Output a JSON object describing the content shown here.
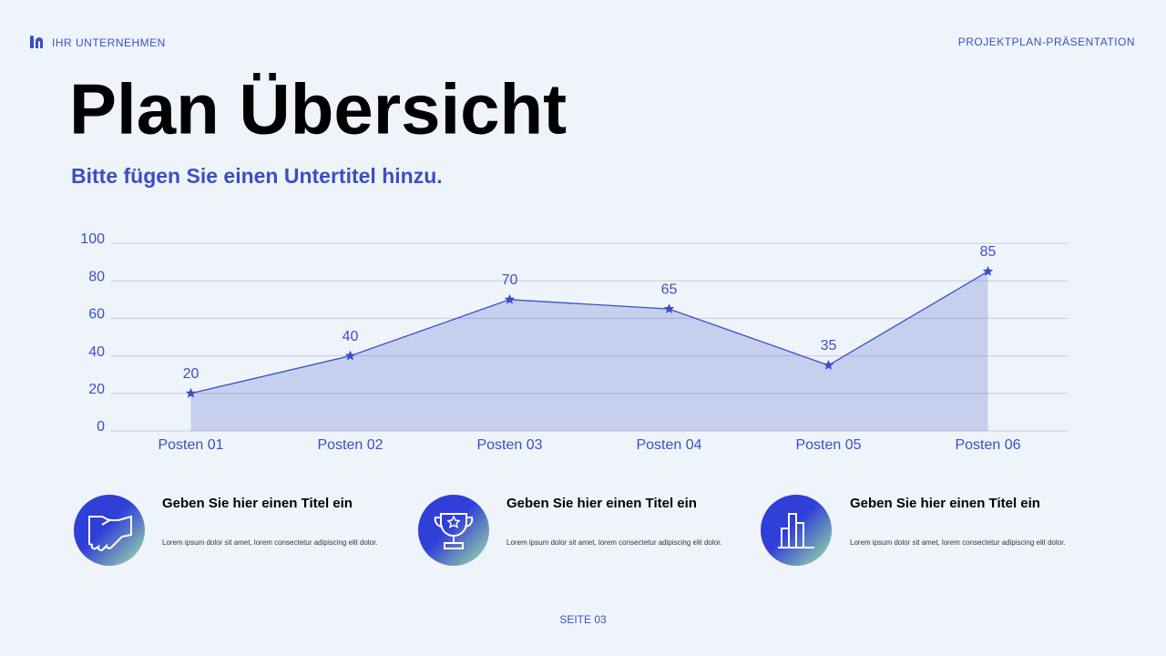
{
  "header": {
    "brand": "IHR UNTERNEHMEN",
    "deck": "PROJEKTPLAN-PRÄSENTATION"
  },
  "title": "Plan Übersicht",
  "subtitle": "Bitte fügen Sie einen Untertitel hinzu.",
  "chart_data": {
    "type": "area",
    "categories": [
      "Posten 01",
      "Posten 02",
      "Posten 03",
      "Posten 04",
      "Posten 05",
      "Posten 06"
    ],
    "values": [
      20,
      40,
      70,
      65,
      35,
      85
    ],
    "color": "#3b4fc4",
    "ylim": [
      0,
      100
    ],
    "yticks": [
      0,
      20,
      40,
      60,
      80,
      100
    ],
    "grid": true,
    "marker": "star"
  },
  "features": [
    {
      "title": "Geben Sie hier einen Titel ein",
      "text": "Lorem ipsum dolor sit amet, lorem consectetur adipiscing elit dolor."
    },
    {
      "title": "Geben Sie hier einen Titel ein",
      "text": "Lorem ipsum dolor sit amet, lorem consectetur adipiscing elit dolor."
    },
    {
      "title": "Geben Sie hier einen Titel ein",
      "text": "Lorem ipsum dolor sit amet, lorem consectetur adipiscing elit dolor."
    }
  ],
  "footer": {
    "page": "SEITE 03"
  }
}
